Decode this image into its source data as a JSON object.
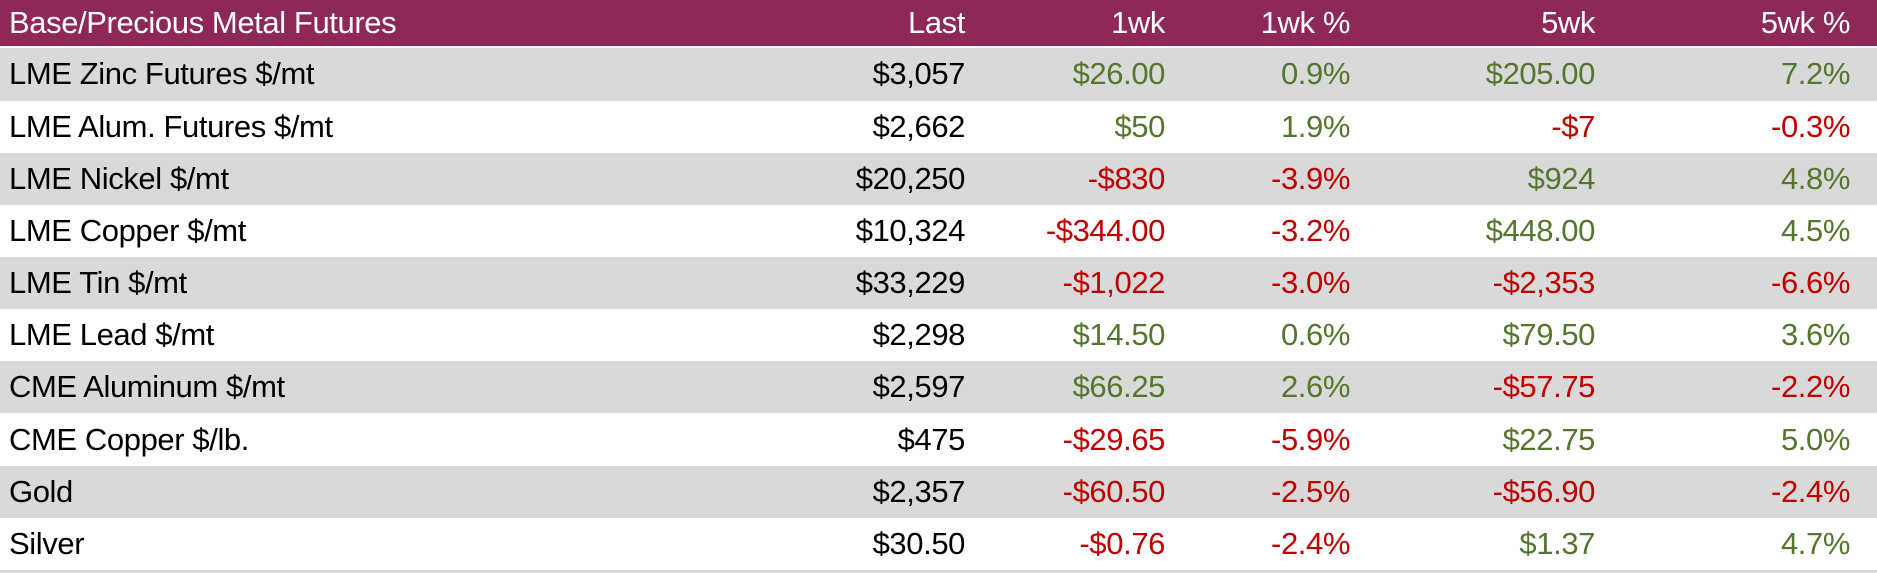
{
  "colors": {
    "header_bg": "#8E2858",
    "header_text": "#FFFFFF",
    "row_gray_bg": "#D9D9D9",
    "row_white_bg": "#FFFFFF",
    "positive_text": "#55762D",
    "negative_text": "#C00000",
    "neutral_text": "#000000"
  },
  "chart_data": {
    "type": "table",
    "title": "Base/Precious Metal Futures",
    "column_headers": {
      "last": "Last",
      "wk1": "1wk",
      "wk1_pct": "1wk %",
      "wk5": "5wk",
      "wk5_pct": "5wk %"
    },
    "rows": [
      {
        "name": "LME Zinc Futures $/mt",
        "last": "$3,057",
        "wk1": "$26.00",
        "wk1_pct": "0.9%",
        "wk5": "$205.00",
        "wk5_pct": "7.2%"
      },
      {
        "name": "LME Alum. Futures $/mt",
        "last": "$2,662",
        "wk1": "$50",
        "wk1_pct": "1.9%",
        "wk5": "-$7",
        "wk5_pct": "-0.3%"
      },
      {
        "name": "LME Nickel $/mt",
        "last": "$20,250",
        "wk1": "-$830",
        "wk1_pct": "-3.9%",
        "wk5": "$924",
        "wk5_pct": "4.8%"
      },
      {
        "name": "LME Copper $/mt",
        "last": "$10,324",
        "wk1": "-$344.00",
        "wk1_pct": "-3.2%",
        "wk5": "$448.00",
        "wk5_pct": "4.5%"
      },
      {
        "name": "LME Tin $/mt",
        "last": "$33,229",
        "wk1": "-$1,022",
        "wk1_pct": "-3.0%",
        "wk5": "-$2,353",
        "wk5_pct": "-6.6%"
      },
      {
        "name": "LME Lead $/mt",
        "last": "$2,298",
        "wk1": "$14.50",
        "wk1_pct": "0.6%",
        "wk5": "$79.50",
        "wk5_pct": "3.6%"
      },
      {
        "name": "CME Aluminum $/mt",
        "last": "$2,597",
        "wk1": "$66.25",
        "wk1_pct": "2.6%",
        "wk5": "-$57.75",
        "wk5_pct": "-2.2%"
      },
      {
        "name": "CME Copper $/lb.",
        "last": "$475",
        "wk1": "-$29.65",
        "wk1_pct": "-5.9%",
        "wk5": "$22.75",
        "wk5_pct": "5.0%"
      },
      {
        "name": "Gold",
        "last": "$2,357",
        "wk1": "-$60.50",
        "wk1_pct": "-2.5%",
        "wk5": "-$56.90",
        "wk5_pct": "-2.4%"
      },
      {
        "name": "Silver",
        "last": "$30.50",
        "wk1": "-$0.76",
        "wk1_pct": "-2.4%",
        "wk5": "$1.37",
        "wk5_pct": "4.7%"
      }
    ]
  }
}
